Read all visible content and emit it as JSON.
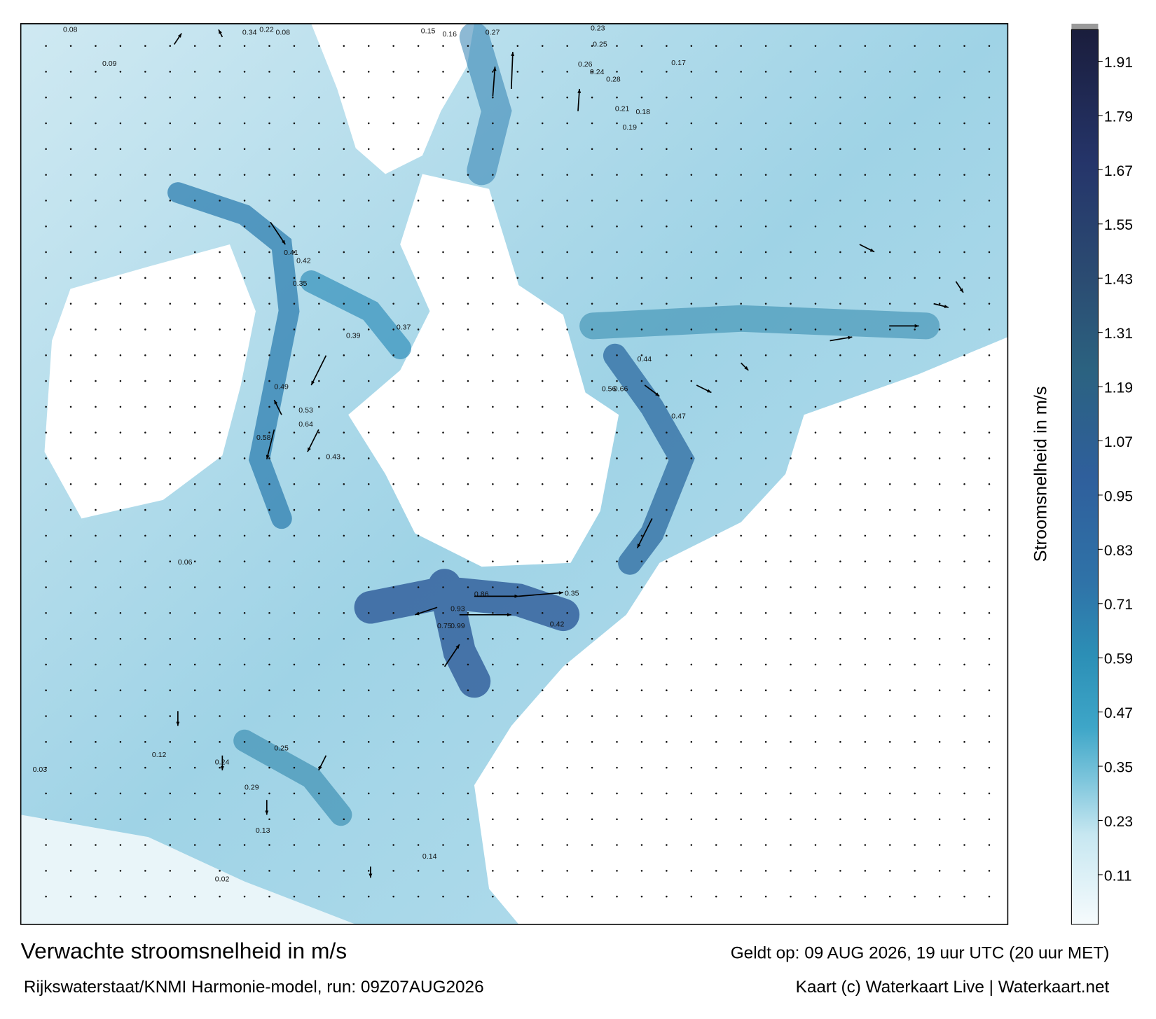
{
  "map": {
    "title": "Verwachte stroomsnelheid in m/s",
    "subtitle": "Rijkswaterstaat/KNMI Harmonie-model, run: 09Z07AUG2026",
    "valid_time": "Geldt op: 09 AUG 2026, 19 uur UTC (20 uur MET)",
    "credit": "Kaart (c) Waterkaart Live | Waterkaart.net",
    "colorbar": {
      "label": "Stroomsnelheid in m/s",
      "range": [
        0,
        1.98
      ],
      "ticks": [
        0.11,
        0.23,
        0.35,
        0.47,
        0.59,
        0.71,
        0.83,
        0.95,
        1.07,
        1.19,
        1.31,
        1.43,
        1.55,
        1.67,
        1.79,
        1.91
      ]
    },
    "speed_labels": [
      0.08,
      0.34,
      0.22,
      0.08,
      0.09,
      0.15,
      0.16,
      0.27,
      0.23,
      0.25,
      0.26,
      0.28,
      0.24,
      0.21,
      0.18,
      0.17,
      0.41,
      0.42,
      0.35,
      0.49,
      0.64,
      0.53,
      0.58,
      0.66,
      0.56,
      0.47,
      0.44,
      0.37,
      0.39,
      0.43,
      0.75,
      0.93,
      0.99,
      0.86,
      0.35,
      0.42,
      0.25,
      0.29,
      0.24,
      0.13,
      0.14,
      0.19,
      0.06,
      0.03,
      0.12,
      0.02
    ]
  }
}
